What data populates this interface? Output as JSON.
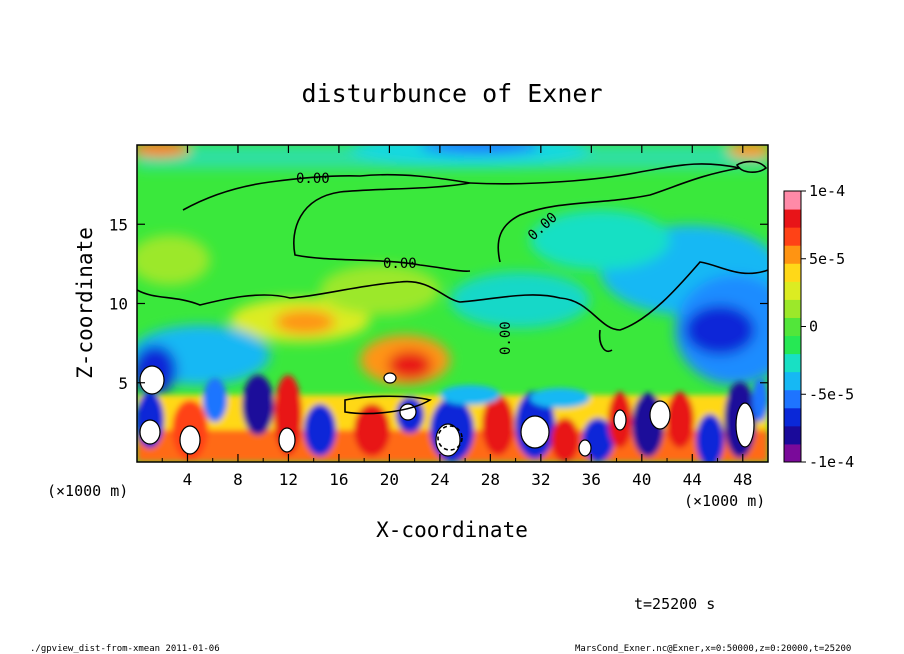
{
  "chart_data": {
    "type": "heatmap",
    "title": "disturbunce of Exner",
    "xlabel": "X-coordinate",
    "ylabel": "Z-coordinate",
    "x_unit_left": "(×1000 m)",
    "x_unit_right": "(×1000 m)",
    "x_ticks": [
      "4",
      "8",
      "12",
      "16",
      "20",
      "24",
      "28",
      "32",
      "36",
      "40",
      "44",
      "48"
    ],
    "x_tick_values": [
      4,
      8,
      12,
      16,
      20,
      24,
      28,
      32,
      36,
      40,
      44,
      48
    ],
    "y_ticks": [
      "5",
      "10",
      "15"
    ],
    "y_tick_values": [
      5,
      10,
      15
    ],
    "xlim": [
      0,
      50
    ],
    "ylim": [
      0,
      20
    ],
    "colorbar": {
      "labels": [
        "1e-4",
        "5e-5",
        "0",
        "-5e-5",
        "-1e-4"
      ],
      "values": [
        0.0001,
        5e-05,
        0,
        -5e-05,
        -0.0001
      ],
      "range": [
        -0.0001,
        0.0001
      ],
      "colors": [
        "#7a0a9a",
        "#1a0a9a",
        "#0a28d8",
        "#1e74ff",
        "#16b8f4",
        "#18e0c4",
        "#26e854",
        "#52e63a",
        "#9ce82a",
        "#dcec22",
        "#ffd818",
        "#ff9412",
        "#ff4216",
        "#e81418",
        "#ff8aa8"
      ]
    },
    "contour_labels": [
      "0.00",
      "0.00",
      "0.00",
      "0.00"
    ],
    "time_label": "t=25200 s",
    "footer_left": "./gpview_dist-from-xmean  2011-01-06",
    "footer_right": "MarsCond_Exner.nc@Exner,x=0:50000,z=0:20000,t=25200"
  }
}
